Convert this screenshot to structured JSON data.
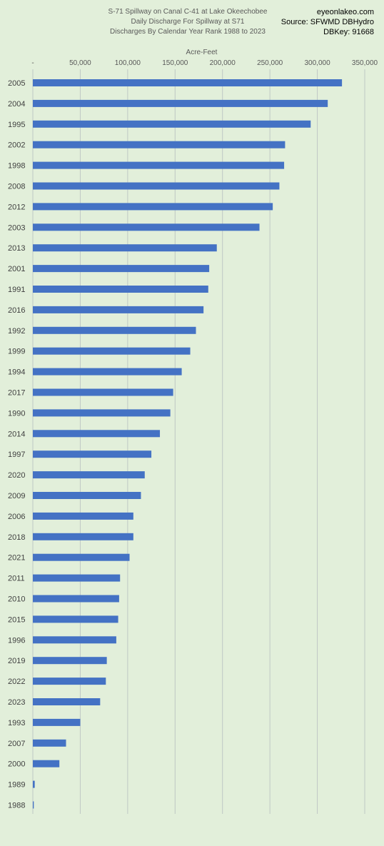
{
  "header": {
    "title_lines": [
      "S-71 Spillway on Canal C-41 at Lake Okeechobee",
      "Daily Discharge For Spillway at S71",
      "Discharges By Calendar Year Rank 1988 to 2023"
    ],
    "source_lines": [
      "eyeonlakeo.com",
      "Source: SFWMD DBHydro",
      "DBKey: 91668"
    ]
  },
  "chart_data": {
    "type": "bar",
    "orientation": "horizontal",
    "xlabel": "Acre-Feet",
    "ylabel": "",
    "xlim": [
      0,
      350000
    ],
    "x_ticks": [
      0,
      50000,
      100000,
      150000,
      200000,
      250000,
      300000,
      350000
    ],
    "x_tick_labels": [
      "-",
      "50,000",
      "100,000",
      "150,000",
      "200,000",
      "250,000",
      "300,000",
      "350,000"
    ],
    "x_axis_position": "top",
    "grid": true,
    "legend": "none",
    "bar_color": "#4472c4",
    "gridline_color": "#bfc8c4",
    "categories": [
      "2005",
      "2004",
      "1995",
      "2002",
      "1998",
      "2008",
      "2012",
      "2003",
      "2013",
      "2001",
      "1991",
      "2016",
      "1992",
      "1999",
      "1994",
      "2017",
      "1990",
      "2014",
      "1997",
      "2020",
      "2009",
      "2006",
      "2018",
      "2021",
      "2011",
      "2010",
      "2015",
      "1996",
      "2019",
      "2022",
      "2023",
      "1993",
      "2007",
      "2000",
      "1989",
      "1988"
    ],
    "values": [
      326000,
      311000,
      293000,
      266000,
      265000,
      260000,
      253000,
      239000,
      194000,
      186000,
      185000,
      180000,
      172000,
      166000,
      157000,
      148000,
      145000,
      134000,
      125000,
      118000,
      114000,
      106000,
      106000,
      102000,
      92000,
      91000,
      90000,
      88000,
      78000,
      77000,
      71000,
      50000,
      35000,
      28000,
      2000,
      1000
    ]
  }
}
